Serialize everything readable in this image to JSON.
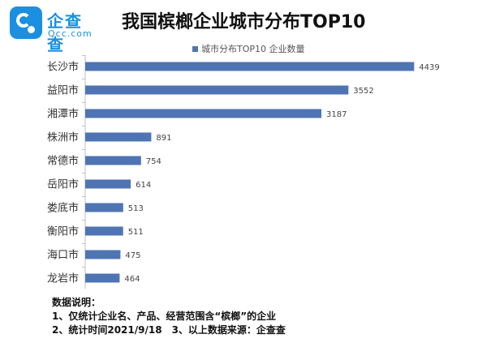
{
  "header": {
    "logo_cn": "企查查",
    "logo_en": "Qcc.com",
    "title": "我国槟榔企业城市分布TOP10"
  },
  "colors": {
    "bar": "#4f74b3",
    "brand": "#1b8fe0"
  },
  "chart_data": {
    "type": "bar",
    "orientation": "horizontal",
    "title": "我国槟榔企业城市分布TOP10",
    "categories": [
      "长沙市",
      "益阳市",
      "湘潭市",
      "株洲市",
      "常德市",
      "岳阳市",
      "娄底市",
      "衡阳市",
      "海口市",
      "龙岩市"
    ],
    "series": [
      {
        "name": "城市分布TOP10 企业数量",
        "values": [
          4439,
          3552,
          3187,
          891,
          754,
          614,
          513,
          511,
          475,
          464
        ]
      }
    ],
    "xlim": [
      0,
      4600
    ],
    "grid": false,
    "legend_position": "top",
    "data_labels": true
  },
  "notes": {
    "heading": "数据说明：",
    "line1": "1、仅统计企业名、产品、经营范围含“槟榔”的企业",
    "line2": "2、统计时间2021/9/18　3、以上数据来源：企查查"
  }
}
